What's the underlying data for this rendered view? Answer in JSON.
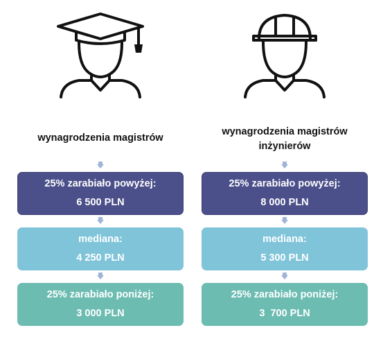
{
  "colors": {
    "box_top": "#4b4f8a",
    "box_mid": "#7fc4d9",
    "box_low": "#6cbcb2",
    "arrow": "#9fb5d6",
    "icon_stroke": "#111111"
  },
  "columns": [
    {
      "icon": "graduate-icon",
      "heading": "wynagrodzenia magistrów",
      "top": {
        "label": "25% zarabiało powyżej:",
        "value": "6 500 PLN"
      },
      "mid": {
        "label": "mediana:",
        "value": "4 250 PLN"
      },
      "low": {
        "label": "25% zarabiało poniżej:",
        "value": "3 000 PLN"
      }
    },
    {
      "icon": "engineer-icon",
      "heading": "wynagrodzenia magistrów inżynierów",
      "top": {
        "label": "25% zarabiało powyżej:",
        "value": "8 000 PLN"
      },
      "mid": {
        "label": "mediana:",
        "value": "5 300 PLN"
      },
      "low": {
        "label": "25% zarabiało poniżej:",
        "value": "3  700 PLN"
      }
    }
  ]
}
